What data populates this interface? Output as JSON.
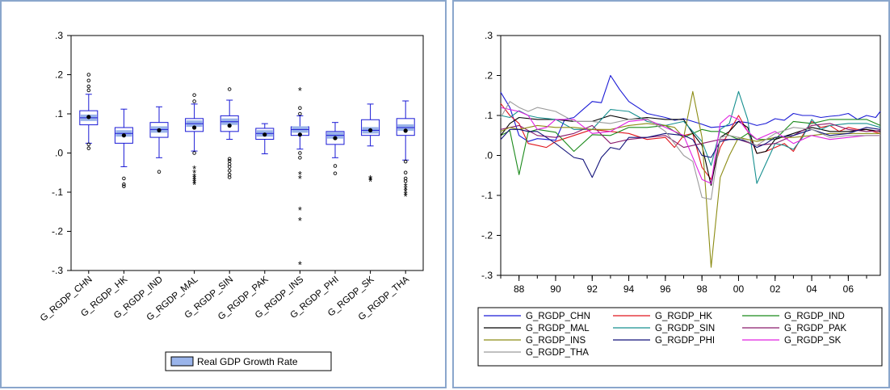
{
  "chart_data": [
    {
      "type": "boxplot",
      "categories": [
        "G_RGDP_CHN",
        "G_RGDP_HK",
        "G_RGDP_IND",
        "G_RGDP_MAL",
        "G_RGDP_SIN",
        "G_RGDP_PAK",
        "G_RGDP_INS",
        "G_RGDP_PHI",
        "G_RGDP_SK",
        "G_RGDP_THA"
      ],
      "y_ticks": [
        ".3",
        ".2",
        ".1",
        ".0",
        "-.1",
        "-.2",
        "-.3"
      ],
      "ylim": [
        -0.3,
        0.3
      ],
      "legend": {
        "label": "Real GDP Growth Rate",
        "placement": "bottom-center"
      },
      "box_color": "#1a1ad6",
      "fill_color": "#9ab4ea",
      "boxes": [
        {
          "whisker_low": 0.025,
          "q1": 0.072,
          "median": 0.09,
          "q3": 0.108,
          "whisker_high": 0.15,
          "mean": 0.092,
          "near_outliers": [
            0.2,
            0.185,
            0.17,
            0.16,
            0.022,
            0.012
          ],
          "far_outliers": []
        },
        {
          "whisker_low": -0.035,
          "q1": 0.025,
          "median": 0.05,
          "q3": 0.065,
          "whisker_high": 0.112,
          "mean": 0.045,
          "near_outliers": [
            -0.065,
            -0.08,
            -0.085
          ],
          "far_outliers": []
        },
        {
          "whisker_low": -0.012,
          "q1": 0.04,
          "median": 0.06,
          "q3": 0.078,
          "whisker_high": 0.118,
          "mean": 0.058,
          "near_outliers": [
            -0.048
          ],
          "far_outliers": []
        },
        {
          "whisker_low": 0.005,
          "q1": 0.055,
          "median": 0.075,
          "q3": 0.088,
          "whisker_high": 0.125,
          "mean": 0.065,
          "near_outliers": [
            0.148,
            0.132,
            0.0
          ],
          "far_outliers": [
            -0.04,
            -0.05,
            -0.06,
            -0.065,
            -0.07,
            -0.075,
            -0.08
          ]
        },
        {
          "whisker_low": 0.035,
          "q1": 0.055,
          "median": 0.08,
          "q3": 0.095,
          "whisker_high": 0.135,
          "mean": 0.07,
          "near_outliers": [
            0.163,
            -0.015,
            -0.02,
            -0.028,
            -0.035,
            -0.045,
            -0.055,
            -0.062
          ],
          "far_outliers": []
        },
        {
          "whisker_low": -0.002,
          "q1": 0.035,
          "median": 0.05,
          "q3": 0.063,
          "whisker_high": 0.075,
          "mean": 0.047,
          "near_outliers": [],
          "far_outliers": []
        },
        {
          "whisker_low": 0.01,
          "q1": 0.045,
          "median": 0.06,
          "q3": 0.067,
          "whisker_high": 0.095,
          "mean": 0.047,
          "near_outliers": [
            0.0,
            -0.012,
            0.115,
            0.1
          ],
          "far_outliers": [
            0.16,
            -0.055,
            -0.065,
            -0.145,
            -0.172,
            -0.285
          ]
        },
        {
          "whisker_low": -0.012,
          "q1": 0.022,
          "median": 0.045,
          "q3": 0.055,
          "whisker_high": 0.078,
          "mean": 0.038,
          "near_outliers": [
            -0.033,
            -0.052
          ],
          "far_outliers": []
        },
        {
          "whisker_low": 0.018,
          "q1": 0.045,
          "median": 0.058,
          "q3": 0.085,
          "whisker_high": 0.125,
          "mean": 0.058,
          "near_outliers": [],
          "far_outliers": [
            -0.065,
            -0.068,
            -0.072
          ]
        },
        {
          "whisker_low": -0.018,
          "q1": 0.045,
          "median": 0.065,
          "q3": 0.088,
          "whisker_high": 0.133,
          "mean": 0.057,
          "near_outliers": [
            -0.022,
            -0.05,
            -0.065,
            -0.072
          ],
          "far_outliers": [
            -0.085,
            -0.092,
            -0.098,
            -0.105,
            -0.11
          ]
        }
      ]
    },
    {
      "type": "line",
      "x": [
        1987,
        1988,
        1989,
        1990,
        1991,
        1992,
        1993,
        1994,
        1995,
        1996,
        1997,
        1998,
        1999,
        2000,
        2001,
        2002,
        2003,
        2004,
        2005,
        2006,
        2007
      ],
      "x_tick_values": [
        1988,
        1990,
        1992,
        1994,
        1996,
        1998,
        2000,
        2002,
        2004,
        2006
      ],
      "x_ticks": [
        "88",
        "90",
        "92",
        "94",
        "96",
        "98",
        "00",
        "02",
        "04",
        "06"
      ],
      "xlim": [
        1987,
        2007.75
      ],
      "y_ticks": [
        ".3",
        ".2",
        ".1",
        ".0",
        "-.1",
        "-.2",
        "-.3"
      ],
      "ylim": [
        -0.3,
        0.3
      ],
      "legend_placement": "bottom",
      "series": [
        {
          "name": "G_RGDP_CHN",
          "color": "#1a1ad6",
          "x": [
            1987,
            1987.5,
            1988,
            1988.5,
            1989,
            1989.5,
            1990,
            1990.5,
            1991,
            1991.5,
            1992,
            1992.5,
            1993,
            1993.5,
            1994,
            1994.5,
            1995,
            1995.5,
            1996,
            1996.5,
            1997,
            1997.5,
            1998,
            1998.5,
            1999,
            1999.5,
            2000,
            2000.5,
            2001,
            2001.5,
            2002,
            2002.5,
            2003,
            2003.5,
            2004,
            2004.5,
            2005,
            2005.5,
            2006,
            2006.5,
            2007,
            2007.5,
            2007.75
          ],
          "y": [
            0.158,
            0.12,
            0.05,
            0.035,
            0.042,
            0.04,
            0.038,
            0.09,
            0.095,
            0.115,
            0.135,
            0.132,
            0.2,
            0.165,
            0.135,
            0.12,
            0.105,
            0.1,
            0.095,
            0.088,
            0.092,
            0.085,
            0.078,
            0.07,
            0.072,
            0.075,
            0.085,
            0.082,
            0.075,
            0.08,
            0.092,
            0.088,
            0.105,
            0.1,
            0.1,
            0.095,
            0.098,
            0.1,
            0.105,
            0.09,
            0.1,
            0.095,
            0.11
          ]
        },
        {
          "name": "G_RGDP_HK",
          "color": "#e0161e",
          "x": [
            1987,
            1987.5,
            1988,
            1988.5,
            1989,
            1989.5,
            1990,
            1991,
            1992,
            1993,
            1994,
            1995,
            1996,
            1996.5,
            1997,
            1997.5,
            1998,
            1998.5,
            1999,
            1999.5,
            2000,
            2000.5,
            2001,
            2001.5,
            2002,
            2002.5,
            2003,
            2003.5,
            2004,
            2004.5,
            2005,
            2005.5,
            2006,
            2006.5,
            2007,
            2007.75
          ],
          "y": [
            0.13,
            0.1,
            0.08,
            0.03,
            0.025,
            0.02,
            0.035,
            0.05,
            0.065,
            0.06,
            0.055,
            0.04,
            0.045,
            0.02,
            0.05,
            0.055,
            -0.03,
            -0.06,
            0.02,
            0.06,
            0.1,
            0.06,
            0.005,
            0.01,
            0.02,
            0.03,
            0.01,
            0.05,
            0.085,
            0.07,
            0.075,
            0.06,
            0.07,
            0.065,
            0.065,
            0.055
          ]
        },
        {
          "name": "G_RGDP_IND",
          "color": "#1b8a1b",
          "x": [
            1987,
            1987.5,
            1988,
            1988.5,
            1989,
            1990,
            1991,
            1992,
            1993,
            1994,
            1995,
            1996,
            1997,
            1998,
            1998.5,
            1999,
            2000,
            2000.5,
            2001,
            2002,
            2003,
            2004,
            2005,
            2006,
            2007,
            2007.75
          ],
          "y": [
            0.05,
            0.062,
            -0.048,
            0.058,
            0.065,
            0.058,
            0.01,
            0.052,
            0.05,
            0.07,
            0.07,
            0.075,
            0.045,
            0.065,
            0.06,
            0.06,
            0.04,
            0.055,
            0.04,
            0.04,
            0.085,
            0.08,
            0.09,
            0.09,
            0.09,
            0.075
          ]
        },
        {
          "name": "G_RGDP_MAL",
          "color": "#000000",
          "x": [
            1987,
            1987.5,
            1988,
            1989,
            1990,
            1991,
            1992,
            1993,
            1994,
            1995,
            1996,
            1997,
            1997.5,
            1998,
            1998.5,
            1999,
            1999.5,
            2000,
            2000.5,
            2001,
            2001.5,
            2002,
            2003,
            2004,
            2005,
            2006,
            2007,
            2007.75
          ],
          "y": [
            0.05,
            0.08,
            0.095,
            0.09,
            0.09,
            0.085,
            0.085,
            0.1,
            0.09,
            0.095,
            0.09,
            0.09,
            0.055,
            0.025,
            -0.075,
            0.045,
            0.06,
            0.085,
            0.07,
            0.005,
            0.01,
            0.04,
            0.055,
            0.07,
            0.06,
            0.06,
            0.065,
            0.06
          ]
        },
        {
          "name": "G_RGDP_SIN",
          "color": "#168f8f",
          "x": [
            1987,
            1987.5,
            1988,
            1988.5,
            1989,
            1990,
            1991,
            1992,
            1993,
            1994,
            1995,
            1996,
            1997,
            1997.5,
            1998,
            1998.5,
            1999,
            1999.5,
            2000,
            2000.5,
            2001,
            2001.5,
            2002,
            2002.5,
            2003,
            2003.5,
            2004,
            2004.5,
            2005,
            2006,
            2007,
            2007.75
          ],
          "y": [
            0.1,
            0.095,
            0.112,
            0.1,
            0.095,
            0.09,
            0.065,
            0.065,
            0.115,
            0.11,
            0.085,
            0.075,
            0.085,
            0.06,
            0.035,
            -0.025,
            0.065,
            0.08,
            0.16,
            0.09,
            -0.07,
            -0.02,
            0.03,
            0.025,
            0.015,
            0.045,
            0.09,
            0.065,
            0.075,
            0.08,
            0.08,
            0.07
          ]
        },
        {
          "name": "G_RGDP_PAK",
          "color": "#8a1a6c",
          "x": [
            1987,
            1988,
            1989,
            1990,
            1991,
            1992,
            1993,
            1994,
            1995,
            1996,
            1997,
            1998,
            1999,
            2000,
            2001,
            2002,
            2003,
            2004,
            2005,
            2006,
            2007,
            2007.75
          ],
          "y": [
            0.065,
            0.075,
            0.05,
            0.045,
            0.055,
            0.075,
            0.03,
            0.04,
            0.045,
            0.05,
            0.02,
            0.03,
            0.04,
            0.04,
            0.025,
            0.03,
            0.05,
            0.075,
            0.08,
            0.065,
            0.06,
            0.062
          ]
        },
        {
          "name": "G_RGDP_INS",
          "color": "#8c8c14",
          "x": [
            1987,
            1987.5,
            1988,
            1989,
            1990,
            1991,
            1992,
            1993,
            1994,
            1995,
            1996,
            1996.5,
            1997,
            1997.5,
            1998,
            1998.5,
            1999,
            1999.5,
            2000,
            2001,
            2002,
            2003,
            2004,
            2005,
            2006,
            2007,
            2007.75
          ],
          "y": [
            0.06,
            0.07,
            0.065,
            0.075,
            0.07,
            0.07,
            0.065,
            0.065,
            0.075,
            0.08,
            0.075,
            0.07,
            0.045,
            0.16,
            0.045,
            -0.28,
            -0.055,
            0.0,
            0.045,
            0.035,
            0.045,
            0.045,
            0.05,
            0.055,
            0.055,
            0.055,
            0.055
          ]
        },
        {
          "name": "G_RGDP_PHI",
          "color": "#12127a",
          "x": [
            1987,
            1987.5,
            1988,
            1988.5,
            1989,
            1990,
            1991,
            1991.5,
            1992,
            1992.5,
            1993,
            1993.5,
            1994,
            1995,
            1996,
            1997,
            1997.5,
            1998,
            1998.5,
            1999,
            1999.5,
            2000,
            2000.5,
            2001,
            2001.5,
            2002,
            2003,
            2004,
            2005,
            2006,
            2007,
            2007.75
          ],
          "y": [
            0.04,
            0.065,
            0.065,
            0.06,
            0.06,
            0.03,
            -0.005,
            -0.01,
            -0.055,
            -0.005,
            0.02,
            0.015,
            0.045,
            0.045,
            0.055,
            0.05,
            0.04,
            0.0,
            -0.005,
            0.035,
            0.04,
            0.04,
            0.035,
            0.02,
            0.03,
            0.045,
            0.05,
            0.065,
            0.05,
            0.055,
            0.07,
            0.065
          ]
        },
        {
          "name": "G_RGDP_SK",
          "color": "#e020e0",
          "x": [
            1987,
            1987.5,
            1988,
            1988.5,
            1989,
            1989.5,
            1990,
            1991,
            1992,
            1993,
            1994,
            1995,
            1996,
            1997,
            1998,
            1998.5,
            1999,
            1999.5,
            2000,
            2000.5,
            2001,
            2002,
            2003,
            2004,
            2005,
            2006,
            2007,
            2007.75
          ],
          "y": [
            0.12,
            0.115,
            0.11,
            0.1,
            0.065,
            0.07,
            0.09,
            0.09,
            0.055,
            0.06,
            0.085,
            0.09,
            0.07,
            0.05,
            -0.06,
            -0.07,
            0.08,
            0.1,
            0.09,
            0.06,
            0.04,
            0.06,
            0.03,
            0.05,
            0.04,
            0.045,
            0.05,
            0.05
          ]
        },
        {
          "name": "G_RGDP_THA",
          "color": "#9b9b9b",
          "x": [
            1987,
            1987.5,
            1988,
            1988.5,
            1989,
            1990,
            1991,
            1992,
            1993,
            1994,
            1995,
            1996,
            1996.5,
            1997,
            1997.5,
            1998,
            1998.5,
            1999,
            1999.5,
            2000,
            2001,
            2002,
            2003,
            2004,
            2005,
            2006,
            2007,
            2007.75
          ],
          "y": [
            0.095,
            0.135,
            0.12,
            0.11,
            0.12,
            0.11,
            0.085,
            0.085,
            0.08,
            0.09,
            0.092,
            0.06,
            0.03,
            0.0,
            -0.015,
            -0.105,
            -0.11,
            0.045,
            0.05,
            0.045,
            0.025,
            0.055,
            0.07,
            0.065,
            0.045,
            0.05,
            0.05,
            0.05
          ]
        }
      ]
    }
  ]
}
